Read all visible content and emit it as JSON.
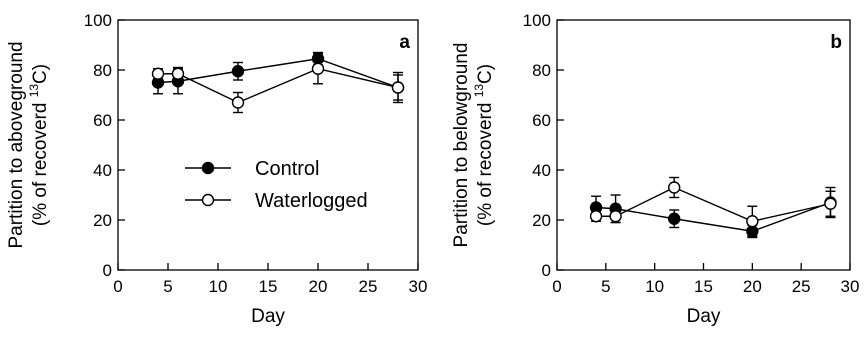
{
  "chart_data": [
    {
      "type": "line",
      "panel_label": "a",
      "ylabel_line1": "Partition to aboveground",
      "ylabel_line2_prefix": "(% of recoverd ",
      "ylabel_line2_sup": "13",
      "ylabel_line2_suffix": "C)",
      "xlabel": "Day",
      "xlim": [
        0,
        30
      ],
      "ylim": [
        0,
        100
      ],
      "xticks": [
        0,
        5,
        10,
        15,
        20,
        25,
        30
      ],
      "yticks": [
        0,
        20,
        40,
        60,
        80,
        100
      ],
      "x": [
        4,
        6,
        12,
        20,
        28
      ],
      "series": [
        {
          "name": "Control",
          "marker": "filled-circle",
          "values": [
            75,
            75.5,
            79.5,
            84.5,
            73
          ],
          "errors": [
            4.5,
            5,
            3.5,
            2.5,
            6
          ]
        },
        {
          "name": "Waterlogged",
          "marker": "open-circle",
          "values": [
            78.5,
            78.5,
            67,
            80.5,
            73
          ],
          "errors": [
            2,
            2.5,
            4,
            6,
            5
          ]
        }
      ],
      "legend": {
        "placement": "center-right"
      },
      "grid": false
    },
    {
      "type": "line",
      "panel_label": "b",
      "ylabel_line1": "Partition to belowground",
      "ylabel_line2_prefix": "(% of recoverd ",
      "ylabel_line2_sup": "13",
      "ylabel_line2_suffix": "C)",
      "xlabel": "Day",
      "xlim": [
        0,
        30
      ],
      "ylim": [
        0,
        100
      ],
      "xticks": [
        0,
        5,
        10,
        15,
        20,
        25,
        30
      ],
      "yticks": [
        0,
        20,
        40,
        60,
        80,
        100
      ],
      "x": [
        4,
        6,
        12,
        20,
        28
      ],
      "series": [
        {
          "name": "Control",
          "marker": "filled-circle",
          "values": [
            25,
            24.5,
            20.5,
            15.5,
            27
          ],
          "errors": [
            4.5,
            5.5,
            3.5,
            2.5,
            6
          ]
        },
        {
          "name": "Waterlogged",
          "marker": "open-circle",
          "values": [
            21.5,
            21.5,
            33,
            19.5,
            26.5
          ],
          "errors": [
            2,
            2.5,
            4,
            6,
            5
          ]
        }
      ],
      "grid": false
    }
  ]
}
